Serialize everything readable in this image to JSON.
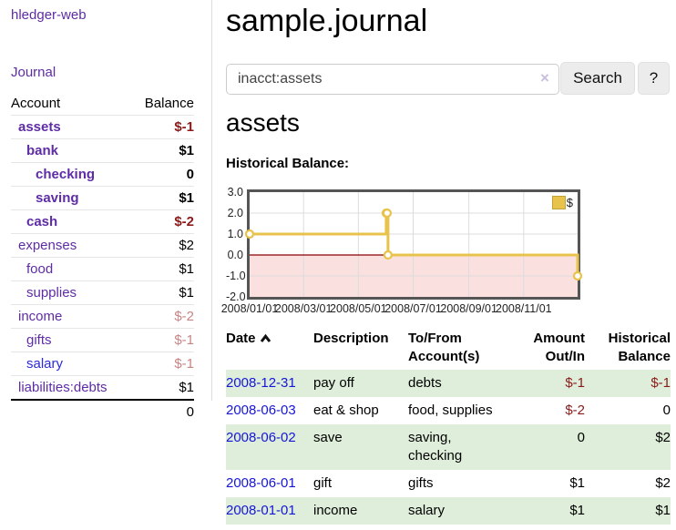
{
  "colors": {
    "link_purple": "#5e2ca5",
    "link_blue": "#2b2bd9",
    "date_link_blue": "#1616d6",
    "negative_strong": "#8b1a1a",
    "negative_soft": "#c98484",
    "row_green": "#dfeeda",
    "chart_gold": "#e8c34b",
    "chart_negative_area": "#fbe0e0",
    "chart_zero_line": "#8b0000",
    "chart_border": "#555555"
  },
  "sidebar": {
    "brand": "hledger-web",
    "journal_link": "Journal",
    "accounts": {
      "col_account": "Account",
      "col_balance": "Balance",
      "rows": [
        {
          "name": "assets",
          "balance": "$-1"
        },
        {
          "name": "bank",
          "balance": "$1"
        },
        {
          "name": "checking",
          "balance": "0"
        },
        {
          "name": "saving",
          "balance": "$1"
        },
        {
          "name": "cash",
          "balance": "$-2"
        },
        {
          "name": "expenses",
          "balance": "$2"
        },
        {
          "name": "food",
          "balance": "$1"
        },
        {
          "name": "supplies",
          "balance": "$1"
        },
        {
          "name": "income",
          "balance": "$-2"
        },
        {
          "name": "gifts",
          "balance": "$-1"
        },
        {
          "name": "salary",
          "balance": "$-1"
        },
        {
          "name": "liabilities:debts",
          "balance": "$1"
        }
      ],
      "total": "0"
    }
  },
  "main": {
    "title": "sample.journal",
    "search": {
      "query": "inacct:assets",
      "clear_icon": "×",
      "button_label": "Search",
      "help_label": "?"
    },
    "account_heading": "assets",
    "section_label": "Historical Balance:"
  },
  "register": {
    "headers": {
      "date": "Date",
      "description": "Description",
      "accounts": "To/From Account(s)",
      "amount": "Amount Out/In",
      "balance": "Historical Balance"
    },
    "rows": [
      {
        "date": "2008-12-31",
        "description": "pay off",
        "accounts": "debts",
        "amount": "$-1",
        "balance": "$-1"
      },
      {
        "date": "2008-06-03",
        "description": "eat & shop",
        "accounts": "food, supplies",
        "amount": "$-2",
        "balance": "0"
      },
      {
        "date": "2008-06-02",
        "description": "save",
        "accounts": "saving, checking",
        "amount": "0",
        "balance": "$2"
      },
      {
        "date": "2008-06-01",
        "description": "gift",
        "accounts": "gifts",
        "amount": "$1",
        "balance": "$2"
      },
      {
        "date": "2008-01-01",
        "description": "income",
        "accounts": "salary",
        "amount": "$1",
        "balance": "$1"
      }
    ]
  },
  "chart_data": {
    "type": "line",
    "step": true,
    "title": "Historical Balance:",
    "xlabel": "",
    "ylabel": "",
    "xlim": [
      "2008-01-01",
      "2008-12-31"
    ],
    "ylim": [
      -2,
      3
    ],
    "grid": true,
    "legend": {
      "position": "top-right",
      "label": "$"
    },
    "y_ticks": [
      {
        "v": 3,
        "label": "3.0"
      },
      {
        "v": 2,
        "label": "2.0"
      },
      {
        "v": 1,
        "label": "1.0"
      },
      {
        "v": 0,
        "label": "0.0"
      },
      {
        "v": -1,
        "label": "-1.0"
      },
      {
        "v": -2,
        "label": "-2.0"
      }
    ],
    "x_ticks": [
      {
        "d": "2008-01-01",
        "label": "2008/01/01"
      },
      {
        "d": "2008-03-01",
        "label": "2008/03/01"
      },
      {
        "d": "2008-05-01",
        "label": "2008/05/01"
      },
      {
        "d": "2008-07-01",
        "label": "2008/07/01"
      },
      {
        "d": "2008-09-01",
        "label": "2008/09/01"
      },
      {
        "d": "2008-11-01",
        "label": "2008/11/01"
      }
    ],
    "series": [
      {
        "name": "$",
        "color": "#e8c34b",
        "points": [
          [
            "2008-01-01",
            1
          ],
          [
            "2008-06-01",
            2
          ],
          [
            "2008-06-02",
            2
          ],
          [
            "2008-06-03",
            0
          ],
          [
            "2008-12-31",
            -1
          ]
        ]
      }
    ]
  }
}
